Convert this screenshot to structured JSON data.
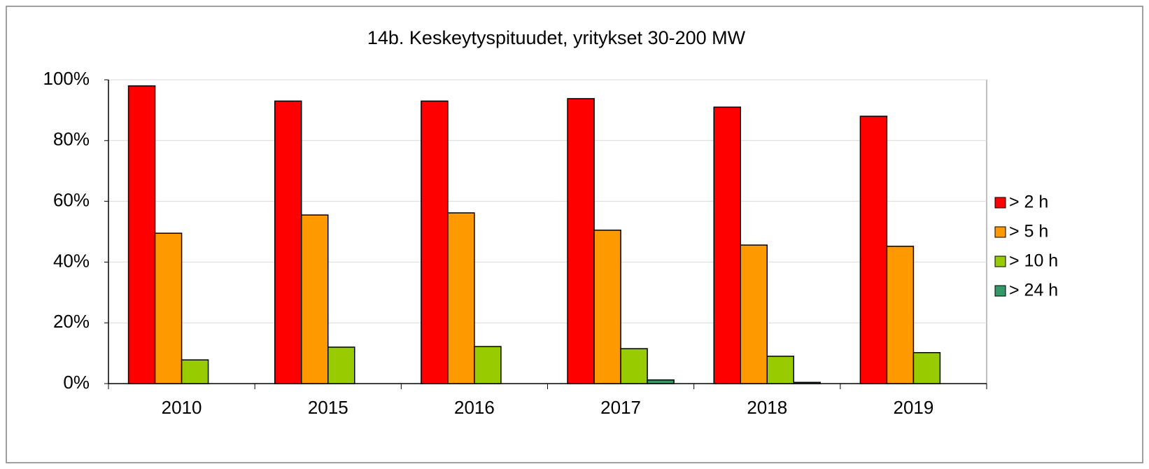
{
  "chart_data": {
    "type": "bar",
    "title": "14b. Keskeytyspituudet, yritykset 30-200 MW",
    "categories": [
      "2010",
      "2015",
      "2016",
      "2017",
      "2018",
      "2019"
    ],
    "series": [
      {
        "name": "> 2 h",
        "color": "#ff0000",
        "values": [
          98,
          93,
          93,
          93.8,
          91,
          88
        ]
      },
      {
        "name": "> 5 h",
        "color": "#ff9900",
        "values": [
          49.5,
          55.5,
          56.2,
          50.5,
          45.6,
          45.2
        ]
      },
      {
        "name": "> 10 h",
        "color": "#99cc00",
        "values": [
          7.8,
          12,
          12.2,
          11.5,
          9,
          10.2
        ]
      },
      {
        "name": "> 24 h",
        "color": "#339966",
        "values": [
          0,
          0,
          0,
          1.2,
          0.4,
          0
        ]
      }
    ],
    "ylim": [
      0,
      100
    ],
    "yticks": [
      {
        "value": 0,
        "label": "0%"
      },
      {
        "value": 20,
        "label": "20%"
      },
      {
        "value": 40,
        "label": "40%"
      },
      {
        "value": 60,
        "label": "60%"
      },
      {
        "value": 80,
        "label": "80%"
      },
      {
        "value": 100,
        "label": "100%"
      }
    ],
    "grid": true,
    "legend": "right"
  }
}
